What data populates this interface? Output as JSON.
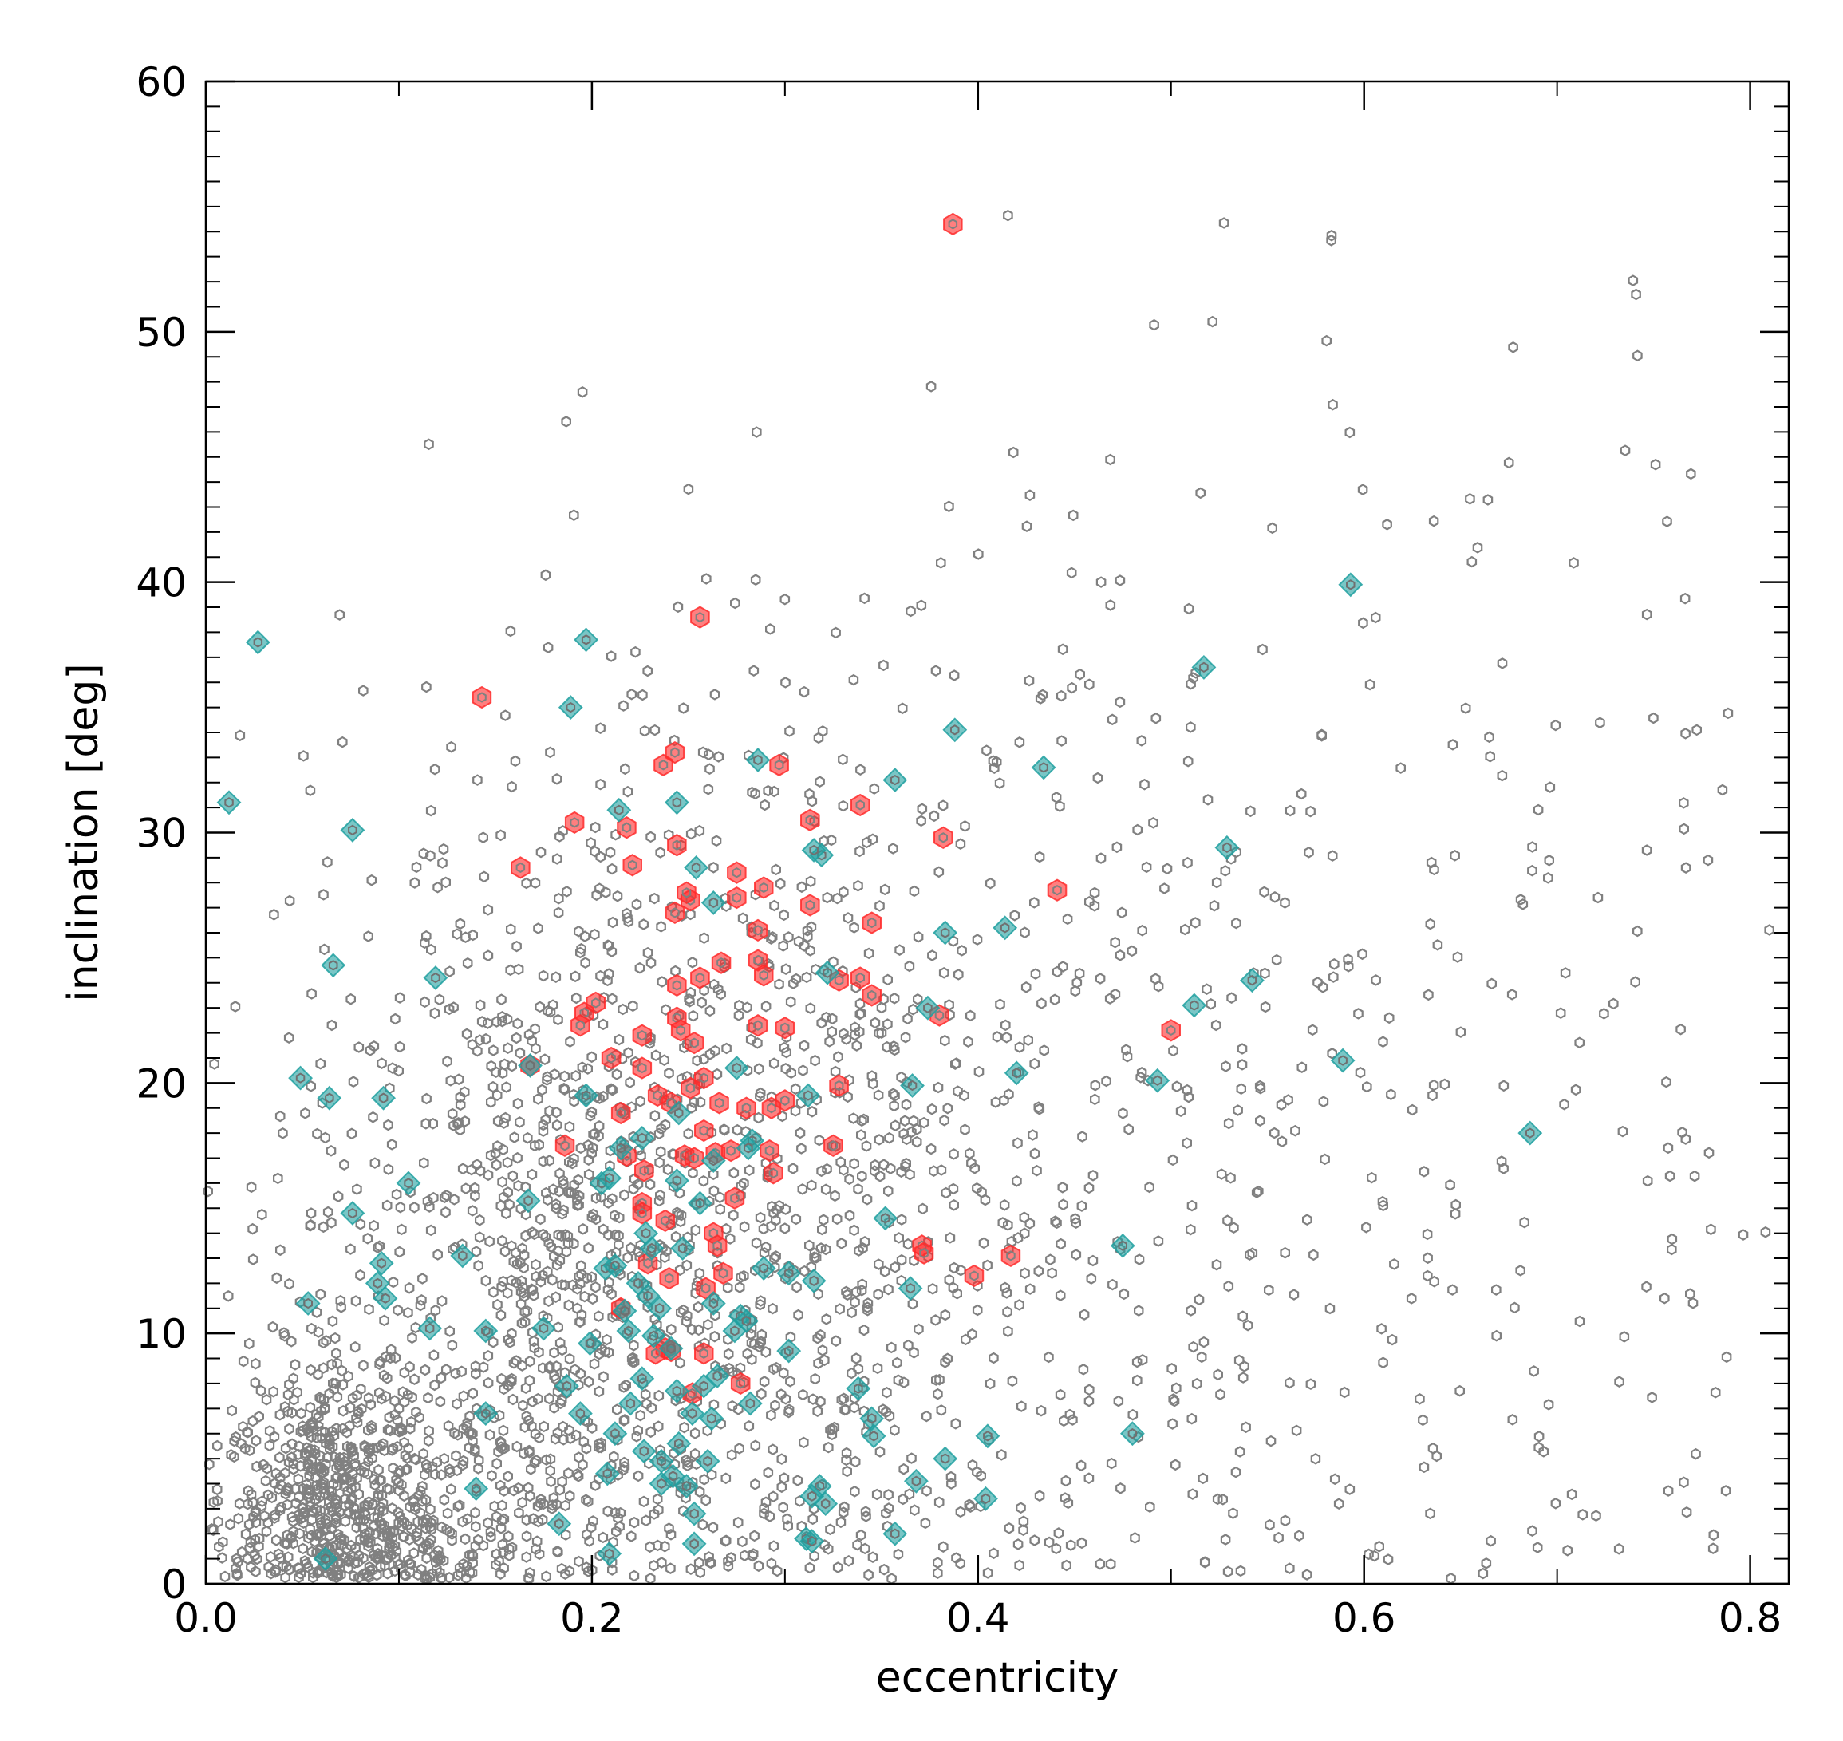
{
  "chart_data": {
    "type": "scatter",
    "title": "",
    "xlabel": "eccentricity",
    "ylabel": "inclination [deg]",
    "xlim": [
      0.0,
      0.82
    ],
    "ylim": [
      0,
      60
    ],
    "x_ticks": [
      0.0,
      0.2,
      0.4,
      0.6,
      0.8
    ],
    "x_tick_labels": [
      "0.0",
      "0.2",
      "0.4",
      "0.6",
      "0.8"
    ],
    "y_ticks": [
      0,
      10,
      20,
      30,
      40,
      50,
      60
    ],
    "y_tick_labels": [
      "0",
      "10",
      "20",
      "30",
      "40",
      "50",
      "60"
    ],
    "x_minor_step": 0.1,
    "y_minor_step": 1,
    "grid": false,
    "legend": "none",
    "series": [
      {
        "marker": "hexagon",
        "color": "#ff2a2a",
        "points": [
          [
            0.387,
            54.3
          ],
          [
            0.143,
            35.4
          ],
          [
            0.256,
            38.6
          ],
          [
            0.237,
            32.7
          ],
          [
            0.243,
            33.2
          ],
          [
            0.297,
            32.7
          ],
          [
            0.191,
            30.4
          ],
          [
            0.218,
            30.2
          ],
          [
            0.244,
            29.5
          ],
          [
            0.313,
            30.5
          ],
          [
            0.339,
            31.1
          ],
          [
            0.382,
            29.8
          ],
          [
            0.163,
            28.6
          ],
          [
            0.221,
            28.7
          ],
          [
            0.275,
            28.4
          ],
          [
            0.289,
            27.8
          ],
          [
            0.251,
            27.3
          ],
          [
            0.249,
            27.6
          ],
          [
            0.243,
            26.8
          ],
          [
            0.275,
            27.4
          ],
          [
            0.286,
            26.1
          ],
          [
            0.345,
            26.4
          ],
          [
            0.441,
            27.7
          ],
          [
            0.313,
            27.1
          ],
          [
            0.202,
            23.2
          ],
          [
            0.196,
            22.8
          ],
          [
            0.194,
            22.3
          ],
          [
            0.244,
            23.9
          ],
          [
            0.256,
            24.2
          ],
          [
            0.267,
            24.8
          ],
          [
            0.286,
            24.9
          ],
          [
            0.289,
            24.3
          ],
          [
            0.328,
            24.1
          ],
          [
            0.339,
            24.2
          ],
          [
            0.345,
            23.5
          ],
          [
            0.38,
            22.7
          ],
          [
            0.244,
            22.6
          ],
          [
            0.246,
            22.1
          ],
          [
            0.253,
            21.6
          ],
          [
            0.286,
            22.3
          ],
          [
            0.3,
            22.2
          ],
          [
            0.226,
            21.9
          ],
          [
            0.21,
            21.0
          ],
          [
            0.226,
            20.6
          ],
          [
            0.258,
            20.2
          ],
          [
            0.251,
            19.8
          ],
          [
            0.328,
            19.9
          ],
          [
            0.5,
            22.1
          ],
          [
            0.168,
            20.7
          ],
          [
            0.215,
            18.8
          ],
          [
            0.234,
            19.5
          ],
          [
            0.241,
            19.2
          ],
          [
            0.266,
            19.2
          ],
          [
            0.28,
            19.0
          ],
          [
            0.293,
            19.0
          ],
          [
            0.3,
            19.3
          ],
          [
            0.258,
            18.1
          ],
          [
            0.264,
            17.2
          ],
          [
            0.272,
            17.3
          ],
          [
            0.248,
            17.1
          ],
          [
            0.253,
            17.0
          ],
          [
            0.292,
            17.3
          ],
          [
            0.294,
            16.4
          ],
          [
            0.325,
            17.5
          ],
          [
            0.186,
            17.5
          ],
          [
            0.218,
            17.1
          ],
          [
            0.227,
            16.5
          ],
          [
            0.226,
            15.2
          ],
          [
            0.226,
            14.8
          ],
          [
            0.238,
            14.5
          ],
          [
            0.274,
            15.4
          ],
          [
            0.263,
            14.0
          ],
          [
            0.265,
            13.5
          ],
          [
            0.371,
            13.5
          ],
          [
            0.372,
            13.2
          ],
          [
            0.417,
            13.1
          ],
          [
            0.398,
            12.3
          ],
          [
            0.229,
            12.8
          ],
          [
            0.24,
            12.2
          ],
          [
            0.259,
            11.8
          ],
          [
            0.268,
            12.4
          ],
          [
            0.215,
            11.0
          ],
          [
            0.238,
            9.4
          ],
          [
            0.233,
            9.2
          ],
          [
            0.241,
            9.3
          ],
          [
            0.258,
            9.2
          ],
          [
            0.277,
            8.0
          ],
          [
            0.252,
            7.6
          ]
        ]
      },
      {
        "marker": "diamond",
        "color": "#20a0a0",
        "points": [
          [
            0.027,
            37.6
          ],
          [
            0.197,
            37.7
          ],
          [
            0.593,
            39.9
          ],
          [
            0.189,
            35.0
          ],
          [
            0.517,
            36.6
          ],
          [
            0.012,
            31.2
          ],
          [
            0.076,
            30.1
          ],
          [
            0.214,
            30.9
          ],
          [
            0.244,
            31.2
          ],
          [
            0.286,
            32.9
          ],
          [
            0.357,
            32.1
          ],
          [
            0.388,
            34.1
          ],
          [
            0.434,
            32.6
          ],
          [
            0.529,
            29.4
          ],
          [
            0.319,
            29.1
          ],
          [
            0.315,
            29.3
          ],
          [
            0.254,
            28.6
          ],
          [
            0.263,
            27.2
          ],
          [
            0.383,
            26.0
          ],
          [
            0.414,
            26.2
          ],
          [
            0.066,
            24.7
          ],
          [
            0.119,
            24.2
          ],
          [
            0.322,
            24.4
          ],
          [
            0.542,
            24.1
          ],
          [
            0.374,
            23.0
          ],
          [
            0.512,
            23.1
          ],
          [
            0.589,
            20.9
          ],
          [
            0.168,
            20.7
          ],
          [
            0.275,
            20.6
          ],
          [
            0.049,
            20.2
          ],
          [
            0.064,
            19.4
          ],
          [
            0.092,
            19.4
          ],
          [
            0.312,
            19.5
          ],
          [
            0.197,
            19.5
          ],
          [
            0.366,
            19.9
          ],
          [
            0.42,
            20.4
          ],
          [
            0.493,
            20.1
          ],
          [
            0.686,
            18.0
          ],
          [
            0.215,
            17.4
          ],
          [
            0.226,
            17.8
          ],
          [
            0.245,
            18.8
          ],
          [
            0.244,
            16.1
          ],
          [
            0.263,
            16.9
          ],
          [
            0.283,
            17.7
          ],
          [
            0.281,
            17.4
          ],
          [
            0.205,
            16.0
          ],
          [
            0.209,
            16.2
          ],
          [
            0.105,
            16.0
          ],
          [
            0.076,
            14.8
          ],
          [
            0.167,
            15.3
          ],
          [
            0.256,
            15.2
          ],
          [
            0.352,
            14.6
          ],
          [
            0.228,
            14.0
          ],
          [
            0.231,
            13.4
          ],
          [
            0.133,
            13.1
          ],
          [
            0.091,
            12.8
          ],
          [
            0.207,
            12.6
          ],
          [
            0.212,
            12.7
          ],
          [
            0.247,
            13.4
          ],
          [
            0.289,
            12.6
          ],
          [
            0.302,
            12.4
          ],
          [
            0.315,
            12.1
          ],
          [
            0.475,
            13.5
          ],
          [
            0.089,
            12.0
          ],
          [
            0.093,
            11.4
          ],
          [
            0.053,
            11.2
          ],
          [
            0.224,
            12.0
          ],
          [
            0.229,
            11.5
          ],
          [
            0.235,
            11.0
          ],
          [
            0.263,
            11.2
          ],
          [
            0.217,
            10.9
          ],
          [
            0.116,
            10.2
          ],
          [
            0.145,
            10.1
          ],
          [
            0.175,
            10.2
          ],
          [
            0.219,
            10.1
          ],
          [
            0.232,
            9.9
          ],
          [
            0.241,
            9.4
          ],
          [
            0.274,
            10.1
          ],
          [
            0.277,
            10.7
          ],
          [
            0.28,
            10.5
          ],
          [
            0.302,
            9.3
          ],
          [
            0.199,
            9.6
          ],
          [
            0.226,
            8.2
          ],
          [
            0.258,
            7.9
          ],
          [
            0.265,
            8.3
          ],
          [
            0.282,
            7.2
          ],
          [
            0.365,
            11.8
          ],
          [
            0.187,
            7.9
          ],
          [
            0.194,
            6.8
          ],
          [
            0.145,
            6.8
          ],
          [
            0.244,
            7.7
          ],
          [
            0.22,
            7.2
          ],
          [
            0.252,
            6.8
          ],
          [
            0.262,
            6.6
          ],
          [
            0.338,
            7.8
          ],
          [
            0.345,
            6.6
          ],
          [
            0.212,
            6.0
          ],
          [
            0.245,
            5.6
          ],
          [
            0.227,
            5.3
          ],
          [
            0.236,
            4.9
          ],
          [
            0.26,
            4.9
          ],
          [
            0.346,
            5.9
          ],
          [
            0.383,
            5.0
          ],
          [
            0.405,
            5.9
          ],
          [
            0.48,
            6.0
          ],
          [
            0.208,
            4.4
          ],
          [
            0.236,
            4.0
          ],
          [
            0.242,
            4.3
          ],
          [
            0.249,
            3.9
          ],
          [
            0.253,
            2.8
          ],
          [
            0.318,
            3.9
          ],
          [
            0.321,
            3.2
          ],
          [
            0.368,
            4.1
          ],
          [
            0.404,
            3.4
          ],
          [
            0.14,
            3.8
          ],
          [
            0.183,
            2.4
          ],
          [
            0.314,
            3.5
          ],
          [
            0.311,
            1.8
          ],
          [
            0.314,
            1.7
          ],
          [
            0.357,
            2.0
          ],
          [
            0.253,
            1.6
          ],
          [
            0.209,
            1.2
          ],
          [
            0.062,
            1.0
          ]
        ]
      }
    ],
    "background_cloud": {
      "marker": "small-hexagon-outline",
      "color": "#808080",
      "description_distribution": [
        {
          "x_center": 0.05,
          "x_spread": 0.05,
          "y_center": 3,
          "y_spread": 3,
          "n": 700
        },
        {
          "x_center": 0.15,
          "x_spread": 0.1,
          "y_center": 13,
          "y_spread": 10,
          "n": 1100
        },
        {
          "x_center": 0.28,
          "x_spread": 0.12,
          "y_center": 15,
          "y_spread": 12,
          "n": 600
        },
        {
          "x_center": 0.5,
          "x_spread": 0.2,
          "y_center": 18,
          "y_spread": 14,
          "n": 450
        }
      ]
    }
  }
}
